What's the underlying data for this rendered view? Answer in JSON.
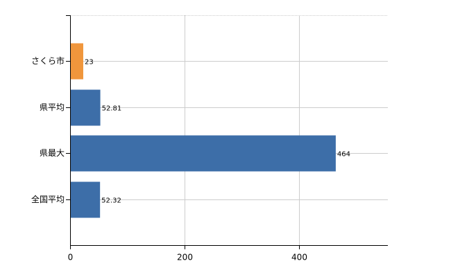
{
  "chart_data": {
    "type": "bar",
    "orientation": "horizontal",
    "categories": [
      "さくら市",
      "県平均",
      "県最大",
      "全国平均"
    ],
    "values": [
      23,
      52.81,
      464,
      52.32
    ],
    "colors": [
      "#f0963c",
      "#3d6ea8",
      "#3d6ea8",
      "#3d6ea8"
    ],
    "xlim": [
      0,
      555
    ],
    "xticks": [
      0,
      200,
      400
    ],
    "grid": true
  }
}
